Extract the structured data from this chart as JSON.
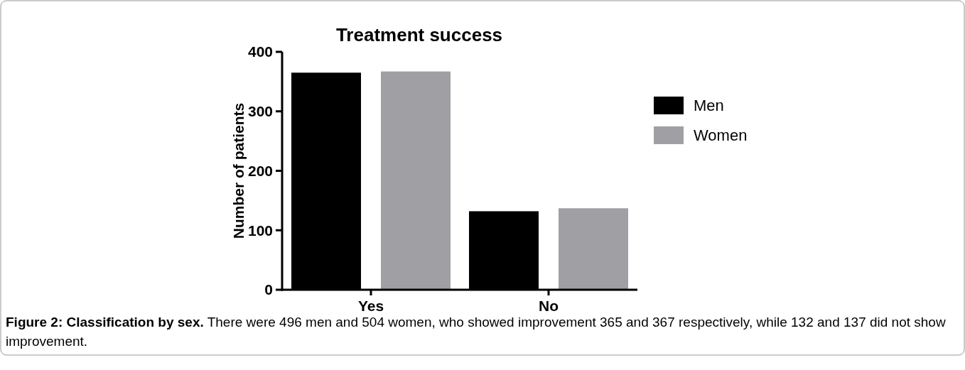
{
  "chart_data": {
    "type": "bar",
    "title": "Treatment success",
    "ylabel": "Number of patients",
    "categories": [
      "Yes",
      "No"
    ],
    "series": [
      {
        "name": "Men",
        "color": "#000000",
        "values": [
          365,
          132
        ]
      },
      {
        "name": "Women",
        "color": "#a0a0a4",
        "values": [
          367,
          137
        ]
      }
    ],
    "ylim": [
      0,
      400
    ],
    "yticks": [
      0,
      100,
      200,
      300,
      400
    ],
    "legend": "right",
    "grid": false,
    "annotations": [
      "Figure 2: Classification by sex.",
      "There were 496 men and 504 women, who showed improvement 365 and 367 respectively, while 132 and 137 did not show improvement."
    ]
  }
}
